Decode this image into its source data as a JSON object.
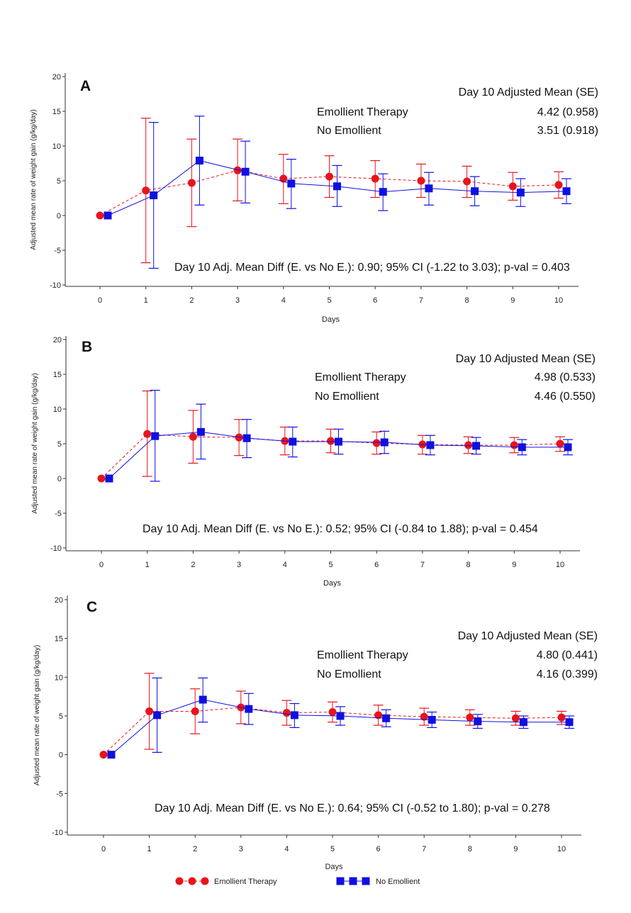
{
  "chart_data": [
    {
      "type": "line",
      "panel": "A",
      "xlabel": "Days",
      "ylabel": "Adjusted mean rate of weight gain (g/kg/day)",
      "x": [
        0,
        1,
        2,
        3,
        4,
        5,
        6,
        7,
        8,
        9,
        10
      ],
      "xticks": [
        "0",
        "1",
        "2",
        "3",
        "4",
        "5",
        "6",
        "7",
        "8",
        "9",
        "10"
      ],
      "ylim": [
        -10,
        20
      ],
      "yticks": [
        "-10",
        "-5",
        "0",
        "5",
        "10",
        "15",
        "20"
      ],
      "series": [
        {
          "name": "Emollient Therapy",
          "color": "#e8141c",
          "marker": "circle",
          "linestyle": "dashed",
          "values": [
            0,
            3.6,
            4.7,
            6.5,
            5.3,
            5.6,
            5.3,
            5.0,
            4.9,
            4.2,
            4.4
          ],
          "lower": [
            0,
            -6.8,
            -1.6,
            2.1,
            1.7,
            2.6,
            2.6,
            2.6,
            2.6,
            2.2,
            2.5
          ],
          "upper": [
            0,
            14.0,
            11.0,
            11.0,
            8.8,
            8.6,
            7.9,
            7.4,
            7.1,
            6.2,
            6.3
          ]
        },
        {
          "name": "No Emollient",
          "color": "#1010e0",
          "marker": "square",
          "linestyle": "solid",
          "values": [
            0,
            2.9,
            7.9,
            6.3,
            4.6,
            4.2,
            3.4,
            3.9,
            3.5,
            3.3,
            3.5
          ],
          "lower": [
            0,
            -7.6,
            1.5,
            1.8,
            1.0,
            1.3,
            0.7,
            1.5,
            1.4,
            1.3,
            1.7
          ],
          "upper": [
            0,
            13.4,
            14.3,
            10.7,
            8.1,
            7.2,
            6.0,
            6.2,
            5.6,
            5.3,
            5.3
          ]
        }
      ],
      "stats": {
        "header": "Day 10 Adjusted Mean (SE)",
        "rows": [
          {
            "label": "Emollient Therapy",
            "value": "4.42 (0.958)"
          },
          {
            "label": "No Emollient",
            "value": "3.51 (0.918)"
          }
        ],
        "diff": "Day 10 Adj. Mean Diff (E. vs No E.): 0.90; 95% CI (-1.22 to 3.03); p-val = 0.403"
      }
    },
    {
      "type": "line",
      "panel": "B",
      "xlabel": "Days",
      "ylabel": "Adjusted mean rate of weight gain (g/kg/day)",
      "x": [
        0,
        1,
        2,
        3,
        4,
        5,
        6,
        7,
        8,
        9,
        10
      ],
      "xticks": [
        "0",
        "1",
        "2",
        "3",
        "4",
        "5",
        "6",
        "7",
        "8",
        "9",
        "10"
      ],
      "ylim": [
        -10,
        20
      ],
      "yticks": [
        "-10",
        "-5",
        "0",
        "5",
        "10",
        "15",
        "20"
      ],
      "series": [
        {
          "name": "Emollient Therapy",
          "color": "#e8141c",
          "marker": "circle",
          "linestyle": "dashed",
          "values": [
            0,
            6.4,
            6.0,
            5.9,
            5.4,
            5.4,
            5.1,
            4.9,
            4.8,
            4.8,
            5.0
          ],
          "lower": [
            0,
            0.3,
            2.2,
            3.3,
            3.4,
            3.7,
            3.5,
            3.5,
            3.6,
            3.7,
            3.9
          ],
          "upper": [
            0,
            12.6,
            9.8,
            8.5,
            7.4,
            7.1,
            6.7,
            6.2,
            6.0,
            5.9,
            6.0
          ]
        },
        {
          "name": "No Emollient",
          "color": "#1010e0",
          "marker": "square",
          "linestyle": "solid",
          "values": [
            0,
            6.1,
            6.7,
            5.8,
            5.3,
            5.3,
            5.2,
            4.8,
            4.7,
            4.5,
            4.5
          ],
          "lower": [
            0,
            -0.4,
            2.8,
            3.0,
            3.1,
            3.5,
            3.6,
            3.4,
            3.5,
            3.4,
            3.4
          ],
          "upper": [
            0,
            12.7,
            10.7,
            8.5,
            7.4,
            7.1,
            6.8,
            6.2,
            5.9,
            5.6,
            5.6
          ]
        }
      ],
      "stats": {
        "header": "Day 10 Adjusted Mean (SE)",
        "rows": [
          {
            "label": "Emollient Therapy",
            "value": "4.98 (0.533)"
          },
          {
            "label": "No Emollient",
            "value": "4.46 (0.550)"
          }
        ],
        "diff": "Day 10 Adj. Mean Diff (E. vs No E.): 0.52; 95% CI (-0.84 to 1.88); p-val = 0.454"
      }
    },
    {
      "type": "line",
      "panel": "C",
      "xlabel": "Days",
      "ylabel": "Adjusted mean rate of weight gain (g/kg/day)",
      "x": [
        0,
        1,
        2,
        3,
        4,
        5,
        6,
        7,
        8,
        9,
        10
      ],
      "xticks": [
        "0",
        "1",
        "2",
        "3",
        "4",
        "5",
        "6",
        "7",
        "8",
        "9",
        "10"
      ],
      "ylim": [
        -10,
        20
      ],
      "yticks": [
        "-10",
        "-5",
        "0",
        "5",
        "10",
        "15",
        "20"
      ],
      "series": [
        {
          "name": "Emollient Therapy",
          "color": "#e8141c",
          "marker": "circle",
          "linestyle": "dashed",
          "values": [
            0,
            5.6,
            5.6,
            6.1,
            5.4,
            5.5,
            5.1,
            4.9,
            4.8,
            4.7,
            4.8
          ],
          "lower": [
            0,
            0.7,
            2.7,
            4.0,
            3.8,
            4.2,
            3.8,
            3.8,
            3.8,
            3.8,
            3.9
          ],
          "upper": [
            0,
            10.5,
            8.5,
            8.2,
            7.0,
            6.8,
            6.4,
            6.0,
            5.8,
            5.6,
            5.6
          ]
        },
        {
          "name": "No Emollient",
          "color": "#1010e0",
          "marker": "square",
          "linestyle": "solid",
          "values": [
            0,
            5.1,
            7.1,
            5.9,
            5.1,
            5.0,
            4.7,
            4.5,
            4.3,
            4.2,
            4.2
          ],
          "lower": [
            0,
            0.3,
            4.2,
            3.9,
            3.5,
            3.8,
            3.6,
            3.5,
            3.4,
            3.4,
            3.4
          ],
          "upper": [
            0,
            9.9,
            9.9,
            7.9,
            6.6,
            6.2,
            5.8,
            5.5,
            5.2,
            5.0,
            5.0
          ]
        }
      ],
      "stats": {
        "header": "Day 10 Adjusted Mean (SE)",
        "rows": [
          {
            "label": "Emollient Therapy",
            "value": "4.80 (0.441)"
          },
          {
            "label": "No Emollient",
            "value": "4.16 (0.399)"
          }
        ],
        "diff": "Day 10 Adj. Mean Diff (E. vs No E.): 0.64; 95% CI (-0.52 to 1.80); p-val = 0.278"
      }
    }
  ],
  "legend": [
    {
      "name": "Emollient Therapy",
      "color": "#e8141c",
      "marker": "circle"
    },
    {
      "name": "No Emollient",
      "color": "#1010e0",
      "marker": "square"
    }
  ]
}
